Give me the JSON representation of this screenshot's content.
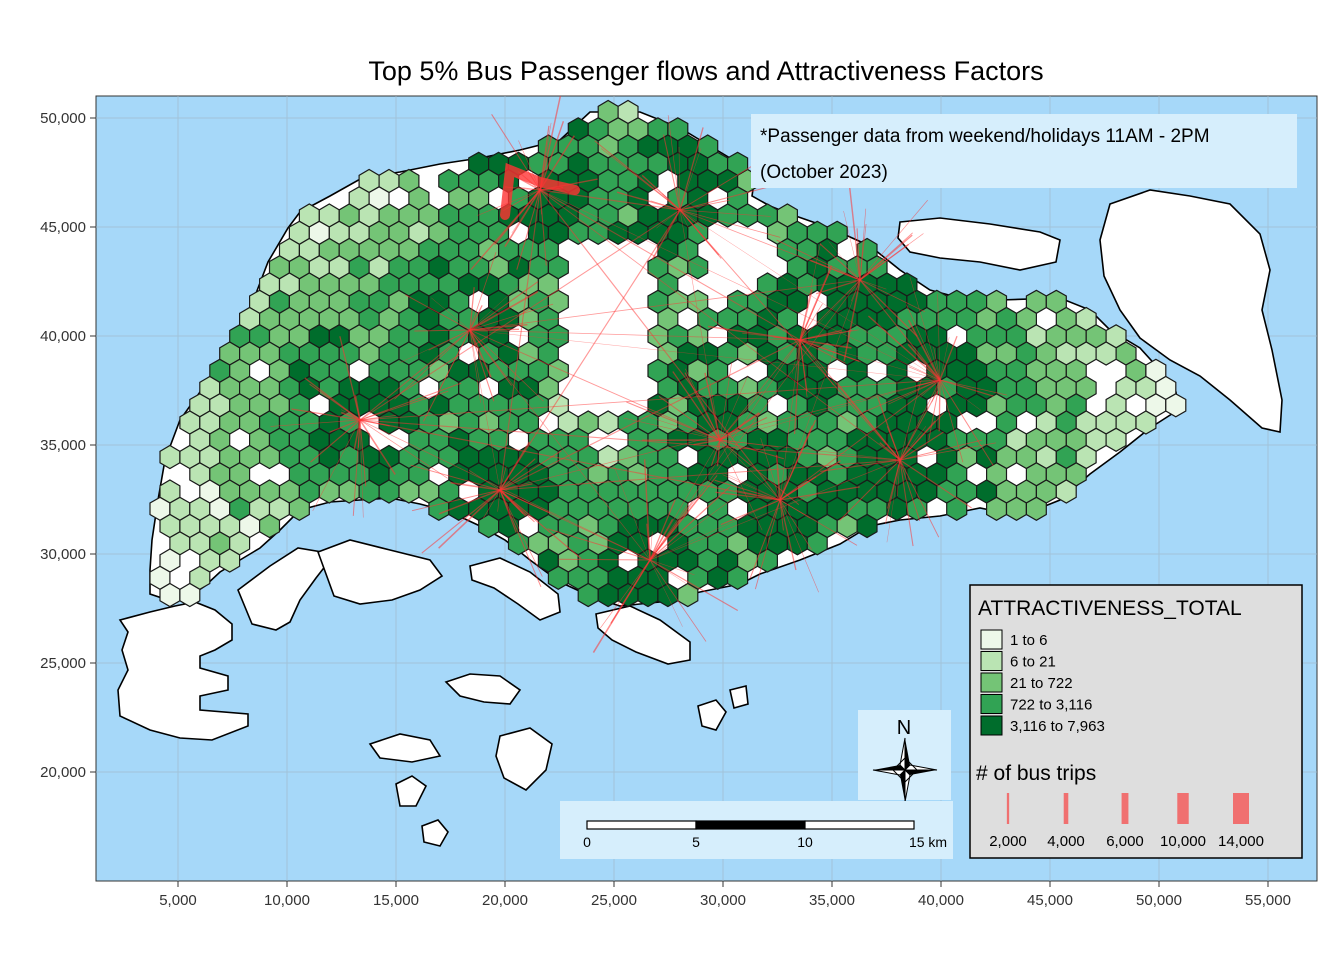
{
  "title": "Top 5% Bus Passenger flows and Attractiveness Factors",
  "note": {
    "line1": "*Passenger data from weekend/holidays 11AM - 2PM",
    "line2": "(October 2023)"
  },
  "axes": {
    "x_ticks": [
      "5,000",
      "10,000",
      "15,000",
      "20,000",
      "25,000",
      "30,000",
      "35,000",
      "40,000",
      "45,000",
      "50,000",
      "55,000"
    ],
    "y_ticks": [
      "50,000",
      "45,000",
      "40,000",
      "35,000",
      "30,000",
      "25,000",
      "20,000"
    ]
  },
  "legend": {
    "fill_title": "ATTRACTIVENESS_TOTAL",
    "classes": [
      {
        "label": "1 to 6",
        "color": "#edf8e9"
      },
      {
        "label": "6 to 21",
        "color": "#bae4b3"
      },
      {
        "label": "21 to 722",
        "color": "#74c476"
      },
      {
        "label": "722 to 3,116",
        "color": "#31a354"
      },
      {
        "label": "3,116 to 7,963",
        "color": "#006d2c"
      }
    ],
    "lines_title": "# of bus trips",
    "line_entries": [
      {
        "label": "2,000",
        "value": 2000
      },
      {
        "label": "4,000",
        "value": 4000
      },
      {
        "label": "6,000",
        "value": 6000
      },
      {
        "label": "10,000",
        "value": 10000
      },
      {
        "label": "14,000",
        "value": 14000
      }
    ]
  },
  "scale_bar": {
    "labels": [
      "0",
      "5",
      "10",
      "15 km"
    ]
  },
  "north_arrow": {
    "label": "N"
  },
  "colors": {
    "sea": "#a6d8f9",
    "land": "#ffffff",
    "flow": "#ff3333",
    "legend_bg": "#dedede",
    "note_bg": "#d6eefc"
  },
  "icons": {
    "north": "compass-rose-icon"
  }
}
